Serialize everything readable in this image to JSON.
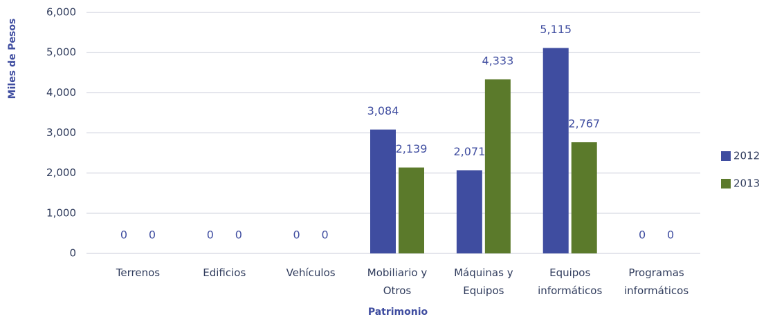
{
  "chart_data": {
    "type": "bar",
    "x_label": "Patrimonio",
    "y_label": "Miles de Pesos",
    "categories": [
      "Terrenos",
      "Edificios",
      "Vehículos",
      "Mobiliario y\nOtros",
      "Máquinas y\nEquipos",
      "Equipos\ninformáticos",
      "Programas\ninformáticos"
    ],
    "series": [
      {
        "name": "2012",
        "color": "#3f4da0",
        "values": [
          0,
          0,
          0,
          3084,
          2071,
          5115,
          0
        ],
        "value_labels": [
          "0",
          "0",
          "0",
          "3,084",
          "2,071",
          "5,115",
          "0"
        ]
      },
      {
        "name": "2013",
        "color": "#5b7a2b",
        "values": [
          0,
          0,
          0,
          2139,
          4333,
          2767,
          0
        ],
        "value_labels": [
          "0",
          "0",
          "0",
          "2,139",
          "4,333",
          "2,767",
          "0"
        ]
      }
    ],
    "ylim": [
      0,
      6000
    ],
    "yticks": [
      0,
      {
        "value": 1000,
        "label": "1,000"
      },
      {
        "value": 2000,
        "label": "2,000"
      },
      {
        "value": 3000,
        "label": "3,000"
      },
      {
        "value": 4000,
        "label": "4,000"
      },
      {
        "value": 5000,
        "label": "5,000"
      },
      {
        "value": 6000,
        "label": "6,000"
      }
    ],
    "grid": true,
    "legend": "right"
  }
}
